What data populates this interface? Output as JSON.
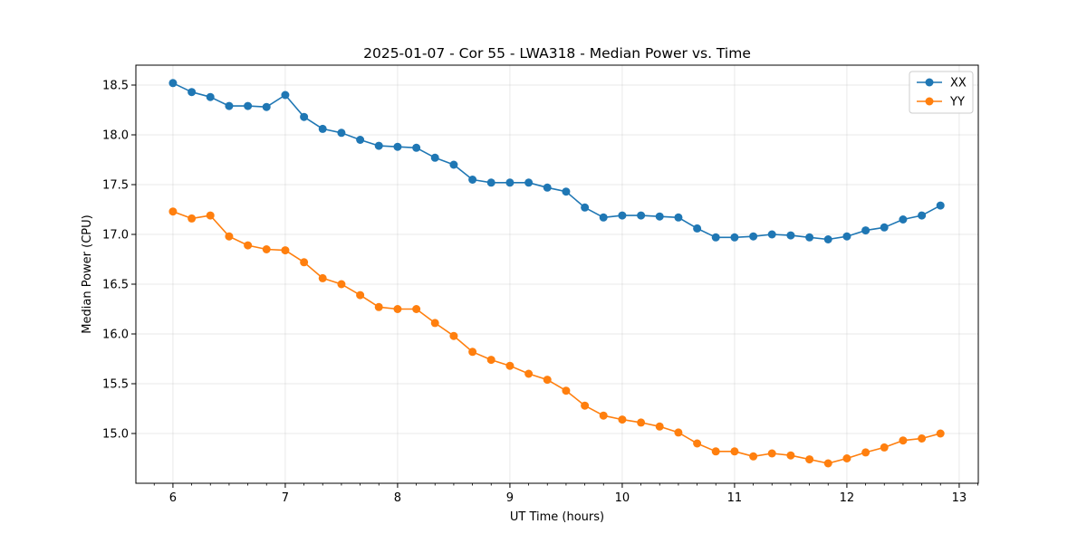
{
  "chart_data": {
    "type": "line",
    "title": "2025-01-07 - Cor 55 - LWA318 - Median Power vs. Time",
    "xlabel": "UT Time (hours)",
    "ylabel": "Median Power (CPU)",
    "xlim": [
      5.67,
      13.17
    ],
    "ylim": [
      14.5,
      18.7
    ],
    "xticks": [
      6,
      7,
      8,
      9,
      10,
      11,
      12,
      13
    ],
    "xtick_labels": [
      "6",
      "7",
      "8",
      "9",
      "10",
      "11",
      "12",
      "13"
    ],
    "yticks": [
      15.0,
      15.5,
      16.0,
      16.5,
      17.0,
      17.5,
      18.0,
      18.5
    ],
    "ytick_labels": [
      "15.0",
      "15.5",
      "16.0",
      "16.5",
      "17.0",
      "17.5",
      "18.0",
      "18.5"
    ],
    "grid": true,
    "legend_position": "top-right",
    "x": [
      6.0,
      6.167,
      6.333,
      6.5,
      6.667,
      6.833,
      7.0,
      7.167,
      7.333,
      7.5,
      7.667,
      7.833,
      8.0,
      8.167,
      8.333,
      8.5,
      8.667,
      8.833,
      9.0,
      9.167,
      9.333,
      9.5,
      9.667,
      9.833,
      10.0,
      10.167,
      10.333,
      10.5,
      10.667,
      10.833,
      11.0,
      11.167,
      11.333,
      11.5,
      11.667,
      11.833,
      12.0,
      12.167,
      12.333,
      12.5,
      12.667,
      12.833
    ],
    "series": [
      {
        "name": "XX",
        "color": "#1f77b4",
        "values": [
          18.52,
          18.43,
          18.38,
          18.29,
          18.29,
          18.28,
          18.4,
          18.18,
          18.06,
          18.02,
          17.95,
          17.89,
          17.88,
          17.87,
          17.77,
          17.7,
          17.55,
          17.52,
          17.52,
          17.52,
          17.47,
          17.43,
          17.27,
          17.17,
          17.19,
          17.19,
          17.18,
          17.17,
          17.06,
          16.97,
          16.97,
          16.98,
          17.0,
          16.99,
          16.97,
          16.95,
          16.98,
          17.04,
          17.07,
          17.15,
          17.19,
          17.29
        ]
      },
      {
        "name": "YY",
        "color": "#ff7f0e",
        "values": [
          17.23,
          17.16,
          17.19,
          16.98,
          16.89,
          16.85,
          16.84,
          16.72,
          16.56,
          16.5,
          16.39,
          16.27,
          16.25,
          16.25,
          16.11,
          15.98,
          15.82,
          15.74,
          15.68,
          15.6,
          15.54,
          15.43,
          15.28,
          15.18,
          15.14,
          15.11,
          15.07,
          15.01,
          14.9,
          14.82,
          14.82,
          14.77,
          14.8,
          14.78,
          14.74,
          14.7,
          14.75,
          14.81,
          14.86,
          14.93,
          14.95,
          15.0
        ]
      }
    ]
  }
}
